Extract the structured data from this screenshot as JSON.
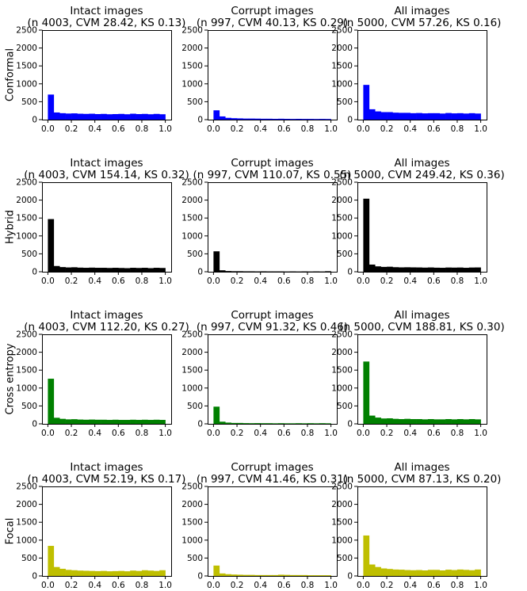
{
  "figure": {
    "row_labels": [
      "Conformal",
      "Hybrid",
      "Cross entropy",
      "Focal"
    ],
    "colors": [
      "#0000ff",
      "#000000",
      "#008000",
      "#bfbf00"
    ]
  },
  "chart_data": [
    {
      "type": "bar",
      "row": 0,
      "col": 0,
      "title_line1": "Intact images",
      "title_line2": "(n 4003, CVM 28.42, KS 0.13)",
      "xlim": [
        0,
        1
      ],
      "ylim": [
        0,
        2500
      ],
      "xticks": [
        "0.0",
        "0.2",
        "0.4",
        "0.6",
        "0.8",
        "1.0"
      ],
      "yticks": [
        "0",
        "500",
        "1000",
        "1500",
        "2000",
        "2500"
      ],
      "bin_edges_start": 0,
      "bin_width": 0.05,
      "values": [
        700,
        200,
        180,
        170,
        175,
        165,
        160,
        165,
        155,
        160,
        150,
        155,
        160,
        150,
        165,
        155,
        160,
        150,
        160,
        150
      ]
    },
    {
      "type": "bar",
      "row": 0,
      "col": 1,
      "title_line1": "Corrupt images",
      "title_line2": "(n 997, CVM 40.13, KS 0.29)",
      "xlim": [
        0,
        1
      ],
      "ylim": [
        0,
        2500
      ],
      "xticks": [
        "0.0",
        "0.2",
        "0.4",
        "0.6",
        "0.8",
        "1.0"
      ],
      "yticks": [
        "0",
        "500",
        "1000",
        "1500",
        "2000",
        "2500"
      ],
      "bin_edges_start": 0,
      "bin_width": 0.05,
      "values": [
        260,
        90,
        50,
        40,
        35,
        30,
        30,
        28,
        25,
        25,
        22,
        25,
        22,
        20,
        22,
        20,
        20,
        18,
        20,
        18
      ]
    },
    {
      "type": "bar",
      "row": 0,
      "col": 2,
      "title_line1": "All images",
      "title_line2": "(n 5000, CVM 57.26, KS 0.16)",
      "xlim": [
        0,
        1
      ],
      "ylim": [
        0,
        2500
      ],
      "xticks": [
        "0.0",
        "0.2",
        "0.4",
        "0.6",
        "0.8",
        "1.0"
      ],
      "yticks": [
        "0",
        "500",
        "1000",
        "1500",
        "2000",
        "2500"
      ],
      "bin_edges_start": 0,
      "bin_width": 0.05,
      "values": [
        970,
        290,
        230,
        210,
        210,
        195,
        190,
        190,
        180,
        185,
        175,
        180,
        180,
        170,
        185,
        175,
        180,
        170,
        180,
        170
      ]
    },
    {
      "type": "bar",
      "row": 1,
      "col": 0,
      "title_line1": "Intact images",
      "title_line2": "(n 4003, CVM 154.14, KS 0.32)",
      "xlim": [
        0,
        1
      ],
      "ylim": [
        0,
        2500
      ],
      "xticks": [
        "0.0",
        "0.2",
        "0.4",
        "0.6",
        "0.8",
        "1.0"
      ],
      "yticks": [
        "0",
        "500",
        "1000",
        "1500",
        "2000",
        "2500"
      ],
      "bin_edges_start": 0,
      "bin_width": 0.05,
      "values": [
        1470,
        160,
        130,
        120,
        125,
        115,
        110,
        115,
        110,
        110,
        105,
        110,
        105,
        100,
        110,
        105,
        110,
        100,
        110,
        105
      ]
    },
    {
      "type": "bar",
      "row": 1,
      "col": 1,
      "title_line1": "Corrupt images",
      "title_line2": "(n 997, CVM 110.07, KS 0.55)",
      "xlim": [
        0,
        1
      ],
      "ylim": [
        0,
        2500
      ],
      "xticks": [
        "0.0",
        "0.2",
        "0.4",
        "0.6",
        "0.8",
        "1.0"
      ],
      "yticks": [
        "0",
        "500",
        "1000",
        "1500",
        "2000",
        "2500"
      ],
      "bin_edges_start": 0,
      "bin_width": 0.05,
      "values": [
        570,
        40,
        20,
        15,
        15,
        12,
        12,
        10,
        12,
        10,
        10,
        10,
        8,
        10,
        8,
        10,
        8,
        10,
        8,
        15
      ]
    },
    {
      "type": "bar",
      "row": 1,
      "col": 2,
      "title_line1": "All images",
      "title_line2": "(n 5000, CVM 249.42, KS 0.36)",
      "xlim": [
        0,
        1
      ],
      "ylim": [
        0,
        2500
      ],
      "xticks": [
        "0.0",
        "0.2",
        "0.4",
        "0.6",
        "0.8",
        "1.0"
      ],
      "yticks": [
        "0",
        "500",
        "1000",
        "1500",
        "2000",
        "2500"
      ],
      "bin_edges_start": 0,
      "bin_width": 0.05,
      "values": [
        2040,
        200,
        150,
        135,
        140,
        127,
        122,
        125,
        122,
        120,
        115,
        120,
        113,
        110,
        118,
        115,
        118,
        110,
        118,
        120
      ]
    },
    {
      "type": "bar",
      "row": 2,
      "col": 0,
      "title_line1": "Intact images",
      "title_line2": "(n 4003, CVM 112.20, KS 0.27)",
      "xlim": [
        0,
        1
      ],
      "ylim": [
        0,
        2500
      ],
      "xticks": [
        "0.0",
        "0.2",
        "0.4",
        "0.6",
        "0.8",
        "1.0"
      ],
      "yticks": [
        "0",
        "500",
        "1000",
        "1500",
        "2000",
        "2500"
      ],
      "bin_edges_start": 0,
      "bin_width": 0.05,
      "values": [
        1260,
        170,
        140,
        125,
        130,
        120,
        115,
        120,
        115,
        115,
        110,
        115,
        110,
        110,
        115,
        110,
        115,
        110,
        115,
        110
      ]
    },
    {
      "type": "bar",
      "row": 2,
      "col": 1,
      "title_line1": "Corrupt images",
      "title_line2": "(n 997, CVM 91.32, KS 0.46)",
      "xlim": [
        0,
        1
      ],
      "ylim": [
        0,
        2500
      ],
      "xticks": [
        "0.0",
        "0.2",
        "0.4",
        "0.6",
        "0.8",
        "1.0"
      ],
      "yticks": [
        "0",
        "500",
        "1000",
        "1500",
        "2000",
        "2500"
      ],
      "bin_edges_start": 0,
      "bin_width": 0.05,
      "values": [
        480,
        60,
        35,
        25,
        25,
        20,
        18,
        20,
        18,
        18,
        15,
        18,
        15,
        15,
        18,
        15,
        18,
        15,
        18,
        15
      ]
    },
    {
      "type": "bar",
      "row": 2,
      "col": 2,
      "title_line1": "All images",
      "title_line2": "(n 5000, CVM 188.81, KS 0.30)",
      "xlim": [
        0,
        1
      ],
      "ylim": [
        0,
        2500
      ],
      "xticks": [
        "0.0",
        "0.2",
        "0.4",
        "0.6",
        "0.8",
        "1.0"
      ],
      "yticks": [
        "0",
        "500",
        "1000",
        "1500",
        "2000",
        "2500"
      ],
      "bin_edges_start": 0,
      "bin_width": 0.05,
      "values": [
        1740,
        230,
        175,
        150,
        155,
        140,
        133,
        140,
        133,
        133,
        125,
        133,
        125,
        125,
        133,
        125,
        133,
        125,
        133,
        125
      ]
    },
    {
      "type": "bar",
      "row": 3,
      "col": 0,
      "title_line1": "Intact images",
      "title_line2": "(n 4003, CVM 52.19, KS 0.17)",
      "xlim": [
        0,
        1
      ],
      "ylim": [
        0,
        2500
      ],
      "xticks": [
        "0.0",
        "0.2",
        "0.4",
        "0.6",
        "0.8",
        "1.0"
      ],
      "yticks": [
        "0",
        "500",
        "1000",
        "1500",
        "2000",
        "2500"
      ],
      "bin_edges_start": 0,
      "bin_width": 0.05,
      "values": [
        840,
        250,
        200,
        170,
        160,
        150,
        145,
        140,
        135,
        140,
        130,
        135,
        140,
        130,
        150,
        140,
        160,
        150,
        140,
        160
      ]
    },
    {
      "type": "bar",
      "row": 3,
      "col": 1,
      "title_line1": "Corrupt images",
      "title_line2": "(n 997, CVM 41.46, KS 0.31)",
      "xlim": [
        0,
        1
      ],
      "ylim": [
        0,
        2500
      ],
      "xticks": [
        "0.0",
        "0.2",
        "0.4",
        "0.6",
        "0.8",
        "1.0"
      ],
      "yticks": [
        "0",
        "500",
        "1000",
        "1500",
        "2000",
        "2500"
      ],
      "bin_edges_start": 0,
      "bin_width": 0.05,
      "values": [
        290,
        70,
        50,
        40,
        35,
        30,
        30,
        25,
        25,
        25,
        25,
        35,
        30,
        25,
        25,
        25,
        20,
        20,
        20,
        20
      ]
    },
    {
      "type": "bar",
      "row": 3,
      "col": 2,
      "title_line1": "All images",
      "title_line2": "(n 5000, CVM 87.13, KS 0.20)",
      "xlim": [
        0,
        1
      ],
      "ylim": [
        0,
        2500
      ],
      "xticks": [
        "0.0",
        "0.2",
        "0.4",
        "0.6",
        "0.8",
        "1.0"
      ],
      "yticks": [
        "0",
        "500",
        "1000",
        "1500",
        "2000",
        "2500"
      ],
      "bin_edges_start": 0,
      "bin_width": 0.05,
      "values": [
        1130,
        320,
        250,
        210,
        195,
        180,
        175,
        165,
        160,
        165,
        155,
        170,
        170,
        155,
        175,
        165,
        180,
        170,
        160,
        180
      ]
    }
  ]
}
